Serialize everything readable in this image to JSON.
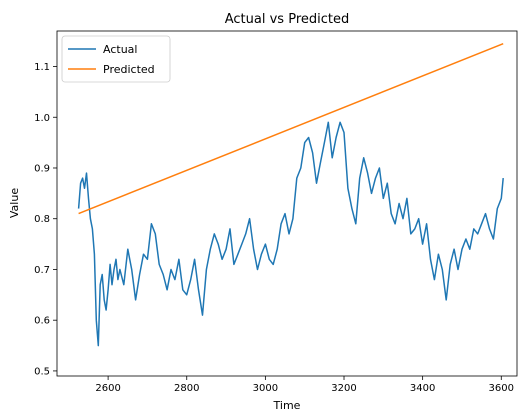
{
  "chart_data": {
    "type": "line",
    "title": "Actual vs Predicted",
    "xlabel": "Time",
    "ylabel": "Value",
    "xlim": [
      2470,
      3640
    ],
    "ylim": [
      0.49,
      1.17
    ],
    "xticks": [
      {
        "value": 2600,
        "label": "2600"
      },
      {
        "value": 2800,
        "label": "2800"
      },
      {
        "value": 3000,
        "label": "3000"
      },
      {
        "value": 3200,
        "label": "3200"
      },
      {
        "value": 3400,
        "label": "3400"
      },
      {
        "value": 3600,
        "label": "3600"
      }
    ],
    "yticks": [
      {
        "value": 0.5,
        "label": "0.5"
      },
      {
        "value": 0.6,
        "label": "0.6"
      },
      {
        "value": 0.7,
        "label": "0.7"
      },
      {
        "value": 0.8,
        "label": "0.8"
      },
      {
        "value": 0.9,
        "label": "0.9"
      },
      {
        "value": 1.0,
        "label": "1.0"
      },
      {
        "value": 1.1,
        "label": "1.1"
      }
    ],
    "grid": false,
    "legend_position": "top-left",
    "series": [
      {
        "name": "Actual",
        "color": "#1f77b4",
        "x": [
          2525,
          2530,
          2535,
          2540,
          2545,
          2550,
          2555,
          2560,
          2565,
          2570,
          2575,
          2580,
          2585,
          2590,
          2595,
          2600,
          2605,
          2610,
          2615,
          2620,
          2625,
          2630,
          2640,
          2650,
          2660,
          2670,
          2680,
          2690,
          2700,
          2710,
          2720,
          2730,
          2740,
          2750,
          2760,
          2770,
          2780,
          2790,
          2800,
          2810,
          2820,
          2830,
          2840,
          2850,
          2860,
          2870,
          2880,
          2890,
          2900,
          2910,
          2920,
          2930,
          2940,
          2950,
          2960,
          2970,
          2980,
          2990,
          3000,
          3010,
          3020,
          3030,
          3040,
          3050,
          3060,
          3070,
          3080,
          3090,
          3100,
          3110,
          3120,
          3130,
          3140,
          3150,
          3160,
          3170,
          3180,
          3190,
          3200,
          3210,
          3220,
          3230,
          3240,
          3250,
          3260,
          3270,
          3280,
          3290,
          3300,
          3310,
          3320,
          3330,
          3340,
          3350,
          3360,
          3370,
          3380,
          3390,
          3400,
          3410,
          3420,
          3430,
          3440,
          3450,
          3460,
          3470,
          3480,
          3490,
          3500,
          3510,
          3520,
          3530,
          3540,
          3550,
          3560,
          3570,
          3580,
          3590,
          3600,
          3605
        ],
        "y": [
          0.82,
          0.87,
          0.88,
          0.86,
          0.89,
          0.84,
          0.8,
          0.78,
          0.73,
          0.6,
          0.55,
          0.67,
          0.69,
          0.64,
          0.62,
          0.66,
          0.71,
          0.67,
          0.7,
          0.72,
          0.68,
          0.7,
          0.67,
          0.74,
          0.7,
          0.64,
          0.69,
          0.73,
          0.72,
          0.79,
          0.77,
          0.71,
          0.69,
          0.66,
          0.7,
          0.68,
          0.72,
          0.66,
          0.65,
          0.68,
          0.72,
          0.66,
          0.61,
          0.7,
          0.74,
          0.77,
          0.75,
          0.72,
          0.74,
          0.78,
          0.71,
          0.73,
          0.75,
          0.77,
          0.8,
          0.74,
          0.7,
          0.73,
          0.75,
          0.72,
          0.71,
          0.74,
          0.79,
          0.81,
          0.77,
          0.8,
          0.88,
          0.9,
          0.95,
          0.96,
          0.93,
          0.87,
          0.91,
          0.95,
          0.99,
          0.92,
          0.96,
          0.99,
          0.97,
          0.86,
          0.82,
          0.79,
          0.88,
          0.92,
          0.89,
          0.85,
          0.88,
          0.9,
          0.84,
          0.87,
          0.81,
          0.79,
          0.83,
          0.8,
          0.84,
          0.77,
          0.78,
          0.8,
          0.75,
          0.79,
          0.72,
          0.68,
          0.73,
          0.7,
          0.64,
          0.71,
          0.74,
          0.7,
          0.74,
          0.76,
          0.74,
          0.78,
          0.77,
          0.79,
          0.81,
          0.78,
          0.76,
          0.82,
          0.84,
          0.88
        ]
      },
      {
        "name": "Predicted",
        "color": "#ff7f0e",
        "x": [
          2525,
          3605
        ],
        "y": [
          0.81,
          1.145
        ]
      }
    ]
  }
}
